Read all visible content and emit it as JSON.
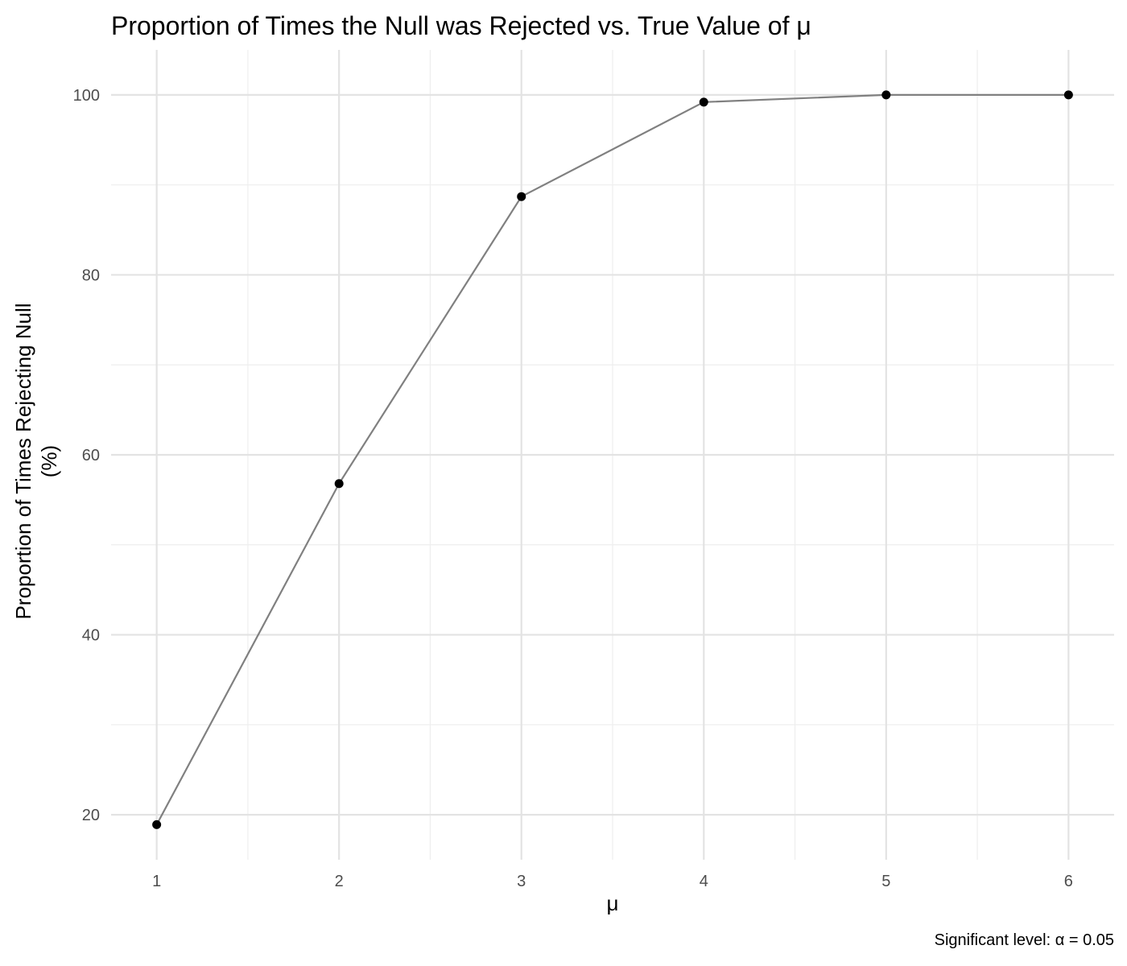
{
  "chart_data": {
    "type": "line",
    "title": "Proportion of Times the Null was Rejected vs. True Value of μ",
    "xlabel": "μ",
    "ylabel_line1": "Proportion of Times Rejecting Null",
    "ylabel_line2": "(%)",
    "caption": "Significant level: α = 0.05",
    "x": [
      1,
      2,
      3,
      4,
      5,
      6
    ],
    "series": [
      {
        "values": [
          18.9,
          56.8,
          88.7,
          99.2,
          100,
          100
        ]
      }
    ],
    "xlim": [
      0.75,
      6.25
    ],
    "ylim": [
      15,
      105
    ],
    "x_ticks": [
      "1",
      "2",
      "3",
      "4",
      "5",
      "6"
    ],
    "y_ticks": [
      "20",
      "40",
      "60",
      "80",
      "100"
    ],
    "grid": true,
    "legend": "none",
    "line_color": "#808080",
    "point_color": "#000000"
  }
}
